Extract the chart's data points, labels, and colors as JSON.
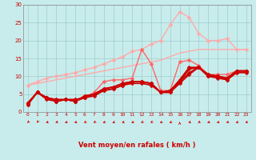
{
  "background_color": "#c8ecec",
  "grid_color": "#a0cccc",
  "text_color": "#cc0000",
  "xlabel": "Vent moyen/en rafales ( km/h )",
  "xlim": [
    -0.5,
    23.5
  ],
  "ylim": [
    0,
    30
  ],
  "xticks": [
    0,
    1,
    2,
    3,
    4,
    5,
    6,
    7,
    8,
    9,
    10,
    11,
    12,
    13,
    14,
    15,
    16,
    17,
    18,
    19,
    20,
    21,
    22,
    23
  ],
  "yticks": [
    0,
    5,
    10,
    15,
    20,
    25,
    30
  ],
  "lines": [
    {
      "x": [
        0,
        1,
        2,
        3,
        4,
        5,
        6,
        7,
        8,
        9,
        10,
        11,
        12,
        13,
        14,
        15,
        16,
        17,
        18,
        19,
        20,
        21,
        22,
        23
      ],
      "y": [
        7.5,
        8.0,
        8.5,
        9.0,
        9.5,
        10.0,
        10.5,
        11.0,
        11.5,
        12.0,
        12.5,
        13.0,
        13.5,
        14.0,
        14.5,
        15.5,
        16.5,
        17.0,
        17.5,
        17.5,
        17.5,
        17.5,
        17.5,
        17.5
      ],
      "color": "#ffaaaa",
      "lw": 1.0,
      "marker": null,
      "ls": "-",
      "zorder": 2
    },
    {
      "x": [
        0,
        1,
        2,
        3,
        4,
        5,
        6,
        7,
        8,
        9,
        10,
        11,
        12,
        13,
        14,
        15,
        16,
        17,
        18,
        19,
        20,
        21,
        22,
        23
      ],
      "y": [
        7.5,
        8.5,
        9.5,
        10.0,
        10.5,
        11.0,
        11.8,
        12.5,
        13.5,
        14.5,
        15.5,
        17.0,
        17.5,
        19.0,
        20.0,
        24.5,
        28.0,
        26.5,
        22.0,
        20.0,
        20.0,
        20.5,
        17.5,
        17.5
      ],
      "color": "#ffaaaa",
      "lw": 1.0,
      "marker": "D",
      "markersize": 2.5,
      "ls": "-",
      "zorder": 2
    },
    {
      "x": [
        0,
        1,
        2,
        3,
        4,
        5,
        6,
        7,
        8,
        9,
        10,
        11,
        12,
        13,
        14,
        15,
        16,
        17,
        18,
        19,
        20,
        21,
        22,
        23
      ],
      "y": [
        2.0,
        5.5,
        4.0,
        3.5,
        3.5,
        3.5,
        4.0,
        5.5,
        8.5,
        9.0,
        9.0,
        9.5,
        17.5,
        13.5,
        6.0,
        6.0,
        14.0,
        14.5,
        13.0,
        10.5,
        10.5,
        10.5,
        11.5,
        11.5
      ],
      "color": "#ff6666",
      "lw": 1.0,
      "marker": "D",
      "markersize": 2.5,
      "ls": "-",
      "zorder": 3
    },
    {
      "x": [
        0,
        1,
        2,
        3,
        4,
        5,
        6,
        7,
        8,
        9,
        10,
        11,
        12,
        13,
        14,
        15,
        16,
        17,
        18,
        19,
        20,
        21,
        22,
        23
      ],
      "y": [
        2.5,
        5.5,
        4.0,
        3.0,
        3.5,
        3.0,
        4.5,
        5.0,
        6.5,
        7.0,
        8.0,
        8.5,
        8.5,
        8.0,
        5.5,
        6.0,
        9.0,
        12.5,
        12.5,
        10.5,
        10.0,
        9.5,
        11.5,
        11.5
      ],
      "color": "#cc0000",
      "lw": 1.2,
      "marker": "D",
      "markersize": 2.5,
      "ls": "-",
      "zorder": 4
    },
    {
      "x": [
        0,
        1,
        2,
        3,
        4,
        5,
        6,
        7,
        8,
        9,
        10,
        11,
        12,
        13,
        14,
        15,
        16,
        17,
        18,
        19,
        20,
        21,
        22,
        23
      ],
      "y": [
        2.5,
        5.5,
        3.5,
        3.0,
        3.5,
        3.0,
        4.0,
        4.5,
        6.0,
        6.5,
        7.5,
        8.0,
        8.0,
        7.5,
        5.5,
        5.5,
        8.5,
        11.0,
        12.5,
        10.0,
        9.5,
        9.0,
        11.0,
        11.0
      ],
      "color": "#cc0000",
      "lw": 1.2,
      "marker": "D",
      "markersize": 2.5,
      "ls": "-",
      "zorder": 4
    },
    {
      "x": [
        0,
        1,
        2,
        3,
        4,
        5,
        6,
        7,
        8,
        9,
        10,
        11,
        12,
        13,
        14,
        15,
        16,
        17,
        18,
        19,
        20,
        21,
        22,
        23
      ],
      "y": [
        2.0,
        5.5,
        4.0,
        3.5,
        3.5,
        3.5,
        4.0,
        5.0,
        6.0,
        6.5,
        7.5,
        8.5,
        8.5,
        8.0,
        5.5,
        5.5,
        8.0,
        10.5,
        12.5,
        10.0,
        10.0,
        9.0,
        11.5,
        11.5
      ],
      "color": "#cc0000",
      "lw": 1.2,
      "marker": "D",
      "markersize": 2.5,
      "ls": "-",
      "zorder": 4
    },
    {
      "x": [
        0,
        1,
        2,
        3,
        4,
        5,
        6,
        7,
        8,
        9,
        10,
        11,
        12,
        13,
        14,
        15,
        16,
        17,
        18,
        19,
        20,
        21,
        22,
        23
      ],
      "y": [
        2.5,
        5.5,
        4.0,
        3.0,
        3.5,
        3.0,
        4.5,
        5.0,
        6.5,
        7.0,
        8.0,
        8.5,
        8.5,
        8.0,
        5.5,
        6.0,
        8.5,
        12.0,
        12.5,
        10.5,
        10.0,
        9.5,
        11.5,
        11.5
      ],
      "color": "#cc0000",
      "lw": 1.2,
      "marker": "D",
      "markersize": 2.5,
      "ls": "-",
      "zorder": 4
    }
  ],
  "arrow_color": "#cc0000",
  "arrow_angles": [
    225,
    240,
    200,
    210,
    195,
    200,
    210,
    215,
    200,
    195,
    205,
    200,
    210,
    215,
    200,
    195,
    90,
    205,
    210,
    200,
    195,
    205,
    200,
    205
  ]
}
